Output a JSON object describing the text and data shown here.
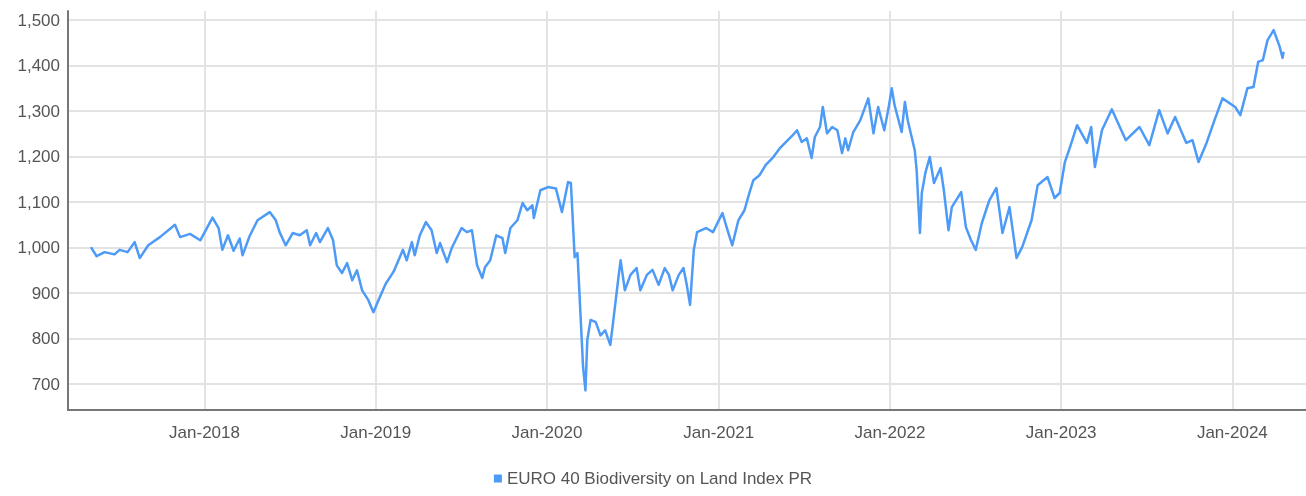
{
  "chart_data": {
    "type": "line",
    "x": [
      "2017-05-05",
      "2017-05-16",
      "2017-06-02",
      "2017-06-23",
      "2017-07-04",
      "2017-07-21",
      "2017-08-05",
      "2017-08-16",
      "2017-09-03",
      "2017-09-28",
      "2017-10-30",
      "2017-11-10",
      "2017-12-01",
      "2017-12-23",
      "2018-01-18",
      "2018-01-31",
      "2018-02-08",
      "2018-02-20",
      "2018-03-04",
      "2018-03-17",
      "2018-03-23",
      "2018-04-07",
      "2018-04-24",
      "2018-05-20",
      "2018-06-02",
      "2018-06-10",
      "2018-06-23",
      "2018-07-08",
      "2018-07-23",
      "2018-08-07",
      "2018-08-14",
      "2018-08-27",
      "2018-09-04",
      "2018-09-21",
      "2018-10-02",
      "2018-10-10",
      "2018-10-21",
      "2018-11-01",
      "2018-11-12",
      "2018-11-22",
      "2018-12-03",
      "2018-12-16",
      "2018-12-27",
      "2019-01-07",
      "2019-01-22",
      "2019-02-08",
      "2019-02-28",
      "2019-03-08",
      "2019-03-19",
      "2019-03-25",
      "2019-04-05",
      "2019-04-18",
      "2019-04-30",
      "2019-05-11",
      "2019-05-18",
      "2019-06-02",
      "2019-06-12",
      "2019-07-03",
      "2019-07-14",
      "2019-07-25",
      "2019-08-05",
      "2019-08-16",
      "2019-08-22",
      "2019-09-02",
      "2019-09-15",
      "2019-09-28",
      "2019-10-04",
      "2019-10-15",
      "2019-10-30",
      "2019-11-10",
      "2019-11-20",
      "2019-12-01",
      "2019-12-04",
      "2019-12-18",
      "2020-01-03",
      "2020-01-20",
      "2020-02-02",
      "2020-02-15",
      "2020-02-21",
      "2020-02-29",
      "2020-03-06",
      "2020-03-18",
      "2020-03-23",
      "2020-03-27",
      "2020-04-03",
      "2020-04-14",
      "2020-04-24",
      "2020-05-04",
      "2020-05-15",
      "2020-05-21",
      "2020-06-02",
      "2020-06-06",
      "2020-06-15",
      "2020-06-27",
      "2020-07-10",
      "2020-07-18",
      "2020-08-01",
      "2020-08-13",
      "2020-08-26",
      "2020-09-08",
      "2020-09-17",
      "2020-09-25",
      "2020-10-08",
      "2020-10-18",
      "2020-10-25",
      "2020-11-01",
      "2020-11-09",
      "2020-11-16",
      "2020-12-05",
      "2020-12-20",
      "2021-01-09",
      "2021-01-20",
      "2021-01-30",
      "2021-02-12",
      "2021-02-25",
      "2021-03-08",
      "2021-03-16",
      "2021-03-29",
      "2021-04-11",
      "2021-04-26",
      "2021-05-11",
      "2021-06-08",
      "2021-06-17",
      "2021-06-27",
      "2021-07-08",
      "2021-07-18",
      "2021-07-25",
      "2021-08-05",
      "2021-08-11",
      "2021-08-20",
      "2021-08-31",
      "2021-09-11",
      "2021-09-21",
      "2021-09-28",
      "2021-10-04",
      "2021-10-15",
      "2021-10-30",
      "2021-11-16",
      "2021-11-27",
      "2021-12-07",
      "2021-12-20",
      "2021-12-29",
      "2022-01-05",
      "2022-01-11",
      "2022-01-26",
      "2022-02-02",
      "2022-02-08",
      "2022-02-23",
      "2022-02-27",
      "2022-03-06",
      "2022-03-10",
      "2022-03-18",
      "2022-03-27",
      "2022-04-05",
      "2022-04-19",
      "2022-04-26",
      "2022-05-06",
      "2022-05-13",
      "2022-06-02",
      "2022-06-12",
      "2022-06-23",
      "2022-07-03",
      "2022-07-16",
      "2022-08-01",
      "2022-08-16",
      "2022-08-29",
      "2022-09-13",
      "2022-09-28",
      "2022-10-10",
      "2022-10-30",
      "2022-11-12",
      "2022-12-03",
      "2022-12-18",
      "2022-12-29",
      "2023-01-09",
      "2023-01-20",
      "2023-02-04",
      "2023-02-25",
      "2023-03-06",
      "2023-03-14",
      "2023-03-29",
      "2023-04-19",
      "2023-05-19",
      "2023-06-17",
      "2023-07-08",
      "2023-07-29",
      "2023-08-16",
      "2023-09-01",
      "2023-09-25",
      "2023-10-08",
      "2023-10-21",
      "2023-11-07",
      "2023-11-24",
      "2023-12-11",
      "2024-01-07",
      "2024-01-18",
      "2024-02-02",
      "2024-02-15",
      "2024-02-25",
      "2024-03-06",
      "2024-03-16",
      "2024-03-29",
      "2024-04-11",
      "2024-04-17",
      "2024-04-19"
    ],
    "series": [
      {
        "name": "EURO 40 Biodiversity on Land Index PR",
        "color": "#4d9bf7",
        "values": [
          999,
          981,
          990,
          985,
          995,
          990,
          1012,
          977,
          1005,
          1023,
          1050,
          1023,
          1030,
          1016,
          1066,
          1043,
          995,
          1027,
          993,
          1020,
          983,
          1025,
          1060,
          1078,
          1060,
          1034,
          1005,
          1032,
          1027,
          1038,
          1005,
          1032,
          1012,
          1043,
          1016,
          961,
          944,
          966,
          928,
          950,
          906,
          885,
          858,
          885,
          920,
          947,
          995,
          972,
          1012,
          983,
          1027,
          1056,
          1038,
          988,
          1010,
          968,
          999,
          1043,
          1034,
          1038,
          961,
          933,
          957,
          972,
          1027,
          1021,
          988,
          1043,
          1060,
          1098,
          1082,
          1093,
          1065,
          1126,
          1133,
          1130,
          1078,
          1144,
          1142,
          979,
          988,
          737,
          686,
          797,
          841,
          836,
          807,
          818,
          786,
          836,
          940,
          972,
          906,
          940,
          955,
          906,
          940,
          951,
          918,
          955,
          940,
          906,
          940,
          955,
          918,
          874,
          995,
          1034,
          1043,
          1034,
          1076,
          1038,
          1005,
          1060,
          1082,
          1122,
          1148,
          1159,
          1181,
          1197,
          1218,
          1247,
          1258,
          1232,
          1240,
          1197,
          1243,
          1265,
          1309,
          1251,
          1265,
          1258,
          1208,
          1240,
          1214,
          1254,
          1280,
          1328,
          1251,
          1309,
          1258,
          1306,
          1350,
          1313,
          1254,
          1320,
          1280,
          1214,
          1170,
          1032,
          1120,
          1166,
          1199,
          1142,
          1175,
          1126,
          1038,
          1089,
          1122,
          1045,
          1016,
          995,
          1054,
          1104,
          1131,
          1032,
          1089,
          977,
          1001,
          1060,
          1137,
          1155,
          1109,
          1120,
          1188,
          1221,
          1269,
          1230,
          1265,
          1177,
          1258,
          1304,
          1236,
          1265,
          1225,
          1302,
          1251,
          1287,
          1230,
          1236,
          1188,
          1230,
          1280,
          1328,
          1309,
          1291,
          1350,
          1353,
          1408,
          1412,
          1456,
          1478,
          1441,
          1417,
          1428
        ]
      }
    ],
    "xlim": [
      "2017-03-16",
      "2024-06-06"
    ],
    "xticks": [
      {
        "value": "2018-01-01",
        "label": "Jan-2018"
      },
      {
        "value": "2019-01-01",
        "label": "Jan-2019"
      },
      {
        "value": "2020-01-01",
        "label": "Jan-2020"
      },
      {
        "value": "2021-01-01",
        "label": "Jan-2021"
      },
      {
        "value": "2022-01-01",
        "label": "Jan-2022"
      },
      {
        "value": "2023-01-01",
        "label": "Jan-2023"
      },
      {
        "value": "2024-01-01",
        "label": "Jan-2024"
      }
    ],
    "ylim": [
      643,
      1520
    ],
    "yticks": [
      700,
      800,
      900,
      {
        "value": 1000,
        "label": "1,000"
      },
      {
        "value": 1100,
        "label": "1,100"
      },
      {
        "value": 1200,
        "label": "1,200"
      },
      {
        "value": 1300,
        "label": "1,300"
      },
      {
        "value": 1400,
        "label": "1,400"
      },
      {
        "value": 1500,
        "label": "1,500"
      }
    ],
    "grid": true,
    "legend": "bottom",
    "marker": "none",
    "line_style": "solid"
  }
}
